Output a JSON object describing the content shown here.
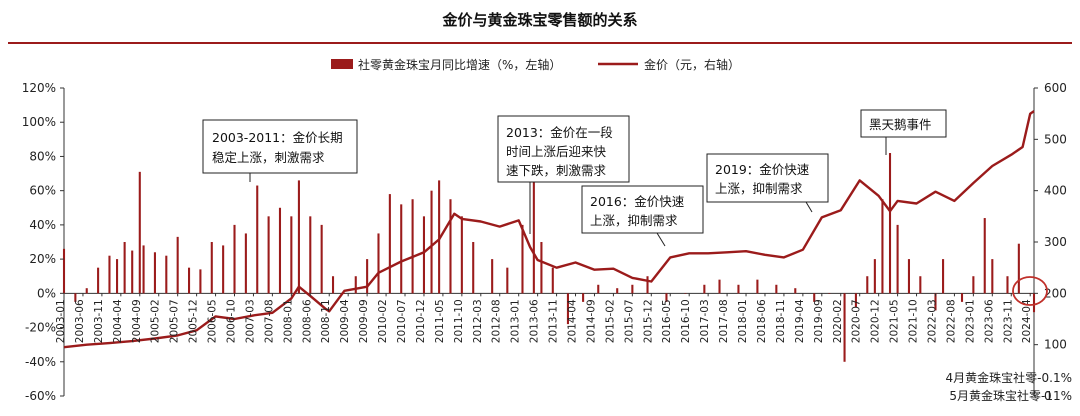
{
  "chart_data": {
    "type": "bar+line",
    "title": "金价与黄金珠宝零售额的关系",
    "legend": [
      {
        "name": "社零黄金珠宝月同比增速（%，左轴）",
        "color": "#9b1b1b",
        "kind": "bar"
      },
      {
        "name": "金价（元，右轴）",
        "color": "#9b1b1b",
        "kind": "line"
      }
    ],
    "colors": {
      "bar": "#9b1b1b",
      "line": "#9b1b1b",
      "circle": "#c0302a",
      "rule": "#9b1b1b"
    },
    "y_left": {
      "range": [
        -60,
        120
      ],
      "ticks": [
        "-60%",
        "-40%",
        "-20%",
        "0%",
        "20%",
        "40%",
        "60%",
        "80%",
        "100%",
        "120%"
      ]
    },
    "y_right": {
      "range": [
        0,
        600
      ],
      "ticks": [
        "0",
        "100",
        "200",
        "300",
        "400",
        "500",
        "600"
      ]
    },
    "x_range": [
      "2003-01",
      "2024-05"
    ],
    "x_ticks": [
      "2003-01",
      "2003-06",
      "2003-11",
      "2004-04",
      "2004-09",
      "2005-02",
      "2005-07",
      "2005-12",
      "2006-05",
      "2006-10",
      "2007-03",
      "2007-08",
      "2008-01",
      "2008-06",
      "2008-11",
      "2009-04",
      "2009-09",
      "2010-02",
      "2010-07",
      "2010-12",
      "2011-05",
      "2011-10",
      "2012-03",
      "2012-08",
      "2013-01",
      "2013-06",
      "2013-11",
      "2014-04",
      "2014-09",
      "2015-02",
      "2015-07",
      "2015-12",
      "2016-05",
      "2016-10",
      "2017-03",
      "2017-08",
      "2018-01",
      "2018-06",
      "2018-11",
      "2019-04",
      "2019-09",
      "2020-02",
      "2020-07",
      "2020-12",
      "2021-05",
      "2021-10",
      "2022-03",
      "2022-08",
      "2023-01",
      "2023-06",
      "2023-11",
      "2024-04"
    ],
    "bar_series": {
      "name": "社零黄金珠宝月同比增速（%，左轴）",
      "points": [
        [
          "2003-01",
          26
        ],
        [
          "2003-04",
          -5
        ],
        [
          "2003-07",
          3
        ],
        [
          "2003-10",
          15
        ],
        [
          "2004-01",
          22
        ],
        [
          "2004-03",
          20
        ],
        [
          "2004-05",
          30
        ],
        [
          "2004-07",
          25
        ],
        [
          "2004-09",
          71
        ],
        [
          "2004-10",
          28
        ],
        [
          "2005-01",
          24
        ],
        [
          "2005-04",
          22
        ],
        [
          "2005-07",
          33
        ],
        [
          "2005-10",
          15
        ],
        [
          "2006-01",
          14
        ],
        [
          "2006-04",
          30
        ],
        [
          "2006-07",
          28
        ],
        [
          "2006-10",
          40
        ],
        [
          "2007-01",
          35
        ],
        [
          "2007-04",
          63
        ],
        [
          "2007-07",
          45
        ],
        [
          "2007-10",
          50
        ],
        [
          "2008-01",
          45
        ],
        [
          "2008-03",
          66
        ],
        [
          "2008-06",
          45
        ],
        [
          "2008-09",
          40
        ],
        [
          "2008-12",
          10
        ],
        [
          "2009-03",
          0
        ],
        [
          "2009-06",
          10
        ],
        [
          "2009-09",
          20
        ],
        [
          "2009-12",
          35
        ],
        [
          "2010-03",
          58
        ],
        [
          "2010-06",
          52
        ],
        [
          "2010-09",
          55
        ],
        [
          "2010-12",
          45
        ],
        [
          "2011-02",
          60
        ],
        [
          "2011-04",
          66
        ],
        [
          "2011-07",
          55
        ],
        [
          "2011-10",
          45
        ],
        [
          "2012-01",
          30
        ],
        [
          "2012-06",
          20
        ],
        [
          "2012-10",
          15
        ],
        [
          "2013-02",
          40
        ],
        [
          "2013-05",
          72
        ],
        [
          "2013-07",
          30
        ],
        [
          "2013-10",
          15
        ],
        [
          "2014-02",
          -18
        ],
        [
          "2014-06",
          -5
        ],
        [
          "2014-10",
          5
        ],
        [
          "2015-03",
          3
        ],
        [
          "2015-07",
          5
        ],
        [
          "2015-11",
          10
        ],
        [
          "2016-04",
          -5
        ],
        [
          "2016-09",
          0
        ],
        [
          "2017-02",
          5
        ],
        [
          "2017-06",
          8
        ],
        [
          "2017-11",
          5
        ],
        [
          "2018-04",
          8
        ],
        [
          "2018-09",
          5
        ],
        [
          "2019-02",
          3
        ],
        [
          "2019-07",
          -5
        ],
        [
          "2019-11",
          0
        ],
        [
          "2020-03",
          -40
        ],
        [
          "2020-06",
          -8
        ],
        [
          "2020-09",
          10
        ],
        [
          "2020-11",
          20
        ],
        [
          "2021-01",
          55
        ],
        [
          "2021-03",
          82
        ],
        [
          "2021-05",
          40
        ],
        [
          "2021-08",
          20
        ],
        [
          "2021-11",
          10
        ],
        [
          "2022-03",
          -10
        ],
        [
          "2022-05",
          20
        ],
        [
          "2022-10",
          -5
        ],
        [
          "2023-01",
          10
        ],
        [
          "2023-04",
          44
        ],
        [
          "2023-06",
          20
        ],
        [
          "2023-10",
          10
        ],
        [
          "2024-01",
          29
        ],
        [
          "2024-04",
          -0.1
        ],
        [
          "2024-05",
          -11
        ]
      ]
    },
    "line_series": {
      "name": "金价（元，右轴）",
      "points": [
        [
          "2003-01",
          95
        ],
        [
          "2003-07",
          100
        ],
        [
          "2004-01",
          103
        ],
        [
          "2004-07",
          107
        ],
        [
          "2005-01",
          112
        ],
        [
          "2005-07",
          118
        ],
        [
          "2005-12",
          128
        ],
        [
          "2006-05",
          155
        ],
        [
          "2006-10",
          150
        ],
        [
          "2007-03",
          157
        ],
        [
          "2007-08",
          162
        ],
        [
          "2008-01",
          190
        ],
        [
          "2008-03",
          213
        ],
        [
          "2008-06",
          195
        ],
        [
          "2008-10",
          170
        ],
        [
          "2008-11",
          165
        ],
        [
          "2009-03",
          205
        ],
        [
          "2009-09",
          213
        ],
        [
          "2009-12",
          240
        ],
        [
          "2010-06",
          262
        ],
        [
          "2010-12",
          280
        ],
        [
          "2011-04",
          305
        ],
        [
          "2011-08",
          355
        ],
        [
          "2011-10",
          345
        ],
        [
          "2012-03",
          340
        ],
        [
          "2012-08",
          330
        ],
        [
          "2013-01",
          342
        ],
        [
          "2013-04",
          290
        ],
        [
          "2013-06",
          265
        ],
        [
          "2013-11",
          250
        ],
        [
          "2014-04",
          260
        ],
        [
          "2014-09",
          246
        ],
        [
          "2015-02",
          248
        ],
        [
          "2015-07",
          230
        ],
        [
          "2015-12",
          223
        ],
        [
          "2016-05",
          270
        ],
        [
          "2016-10",
          278
        ],
        [
          "2017-03",
          278
        ],
        [
          "2017-08",
          280
        ],
        [
          "2018-01",
          282
        ],
        [
          "2018-06",
          275
        ],
        [
          "2018-11",
          270
        ],
        [
          "2019-04",
          285
        ],
        [
          "2019-09",
          348
        ],
        [
          "2020-02",
          362
        ],
        [
          "2020-07",
          420
        ],
        [
          "2020-12",
          390
        ],
        [
          "2021-03",
          360
        ],
        [
          "2021-05",
          380
        ],
        [
          "2021-10",
          375
        ],
        [
          "2022-03",
          398
        ],
        [
          "2022-08",
          380
        ],
        [
          "2023-01",
          415
        ],
        [
          "2023-06",
          448
        ],
        [
          "2023-11",
          470
        ],
        [
          "2024-02",
          485
        ],
        [
          "2024-04",
          550
        ],
        [
          "2024-05",
          555
        ]
      ]
    },
    "annotations": [
      {
        "lines": [
          "2003-2011：金价长期",
          "稳定上涨，刺激需求"
        ]
      },
      {
        "lines": [
          "2013：金价在一段",
          "时间上涨后迎来快",
          "速下跌，刺激需求"
        ]
      },
      {
        "lines": [
          "2016：金价快速",
          "上涨，抑制需求"
        ]
      },
      {
        "lines": [
          "2019：金价快速",
          "上涨，抑制需求"
        ]
      },
      {
        "lines": [
          "黑天鹅事件"
        ]
      }
    ],
    "notes": [
      "4月黄金珠宝社零-0.1%",
      "5月黄金珠宝社零-11%"
    ]
  }
}
